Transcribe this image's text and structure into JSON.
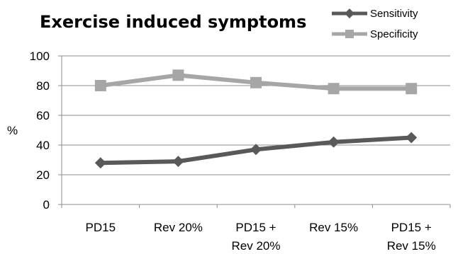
{
  "chart_data": {
    "type": "line",
    "title": "Exercise induced symptoms",
    "xlabel": "",
    "ylabel": "%",
    "ylim": [
      0,
      100
    ],
    "yticks": [
      0,
      20,
      40,
      60,
      80,
      100
    ],
    "grid": "horizontal",
    "legend_position": "top-right",
    "categories": [
      [
        "PD15"
      ],
      [
        "Rev 20%"
      ],
      [
        "PD15 +",
        "Rev 20%"
      ],
      [
        "Rev 15%"
      ],
      [
        "PD15 +",
        "Rev 15%"
      ]
    ],
    "series": [
      {
        "name": "Sensitivity",
        "color": "#595959",
        "marker": "diamond",
        "values": [
          28,
          29,
          37,
          42,
          45
        ]
      },
      {
        "name": "Specificity",
        "color": "#a6a6a6",
        "marker": "square",
        "values": [
          80,
          87,
          82,
          78,
          78
        ]
      }
    ]
  }
}
